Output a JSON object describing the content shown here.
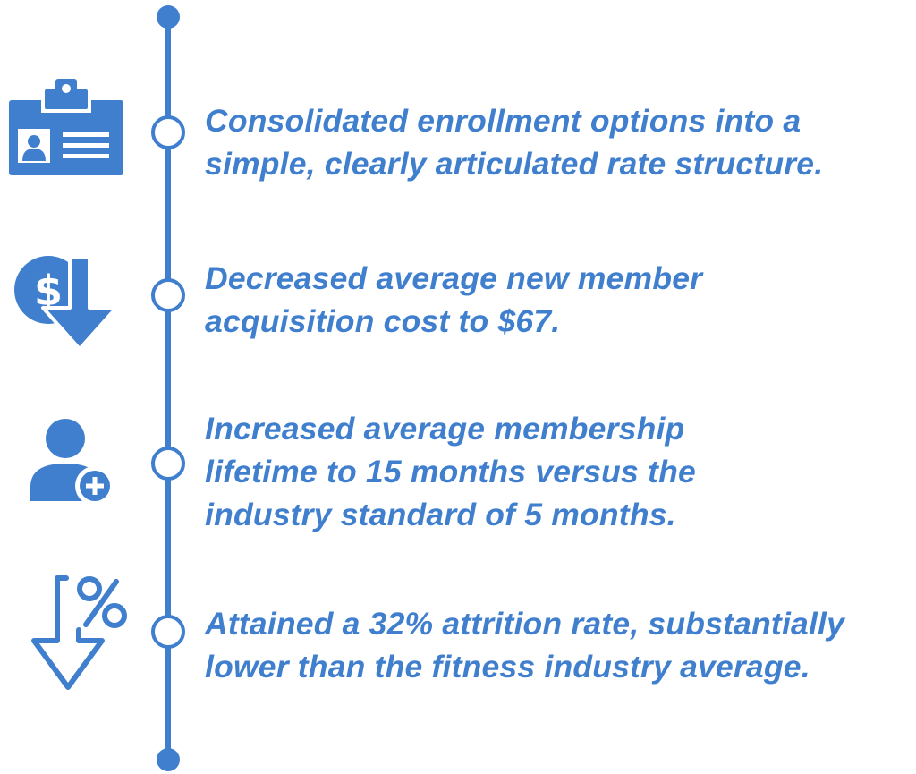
{
  "colors": {
    "accent": "#3f7fce",
    "background": "#ffffff"
  },
  "milestones": [
    {
      "icon": "id-badge-icon",
      "lines": [
        "Consolidated enrollment options into a",
        "simple, clearly articulated rate structure."
      ]
    },
    {
      "icon": "dollar-down-arrow-icon",
      "lines": [
        "Decreased average new member",
        "acquisition cost to $67."
      ]
    },
    {
      "icon": "add-user-icon",
      "lines": [
        "Increased average membership",
        "lifetime to 15 months versus the",
        "industry standard of 5 months."
      ]
    },
    {
      "icon": "percent-down-arrow-icon",
      "lines": [
        "Attained a 32% attrition rate, substantially",
        "lower than the fitness industry average."
      ]
    }
  ]
}
